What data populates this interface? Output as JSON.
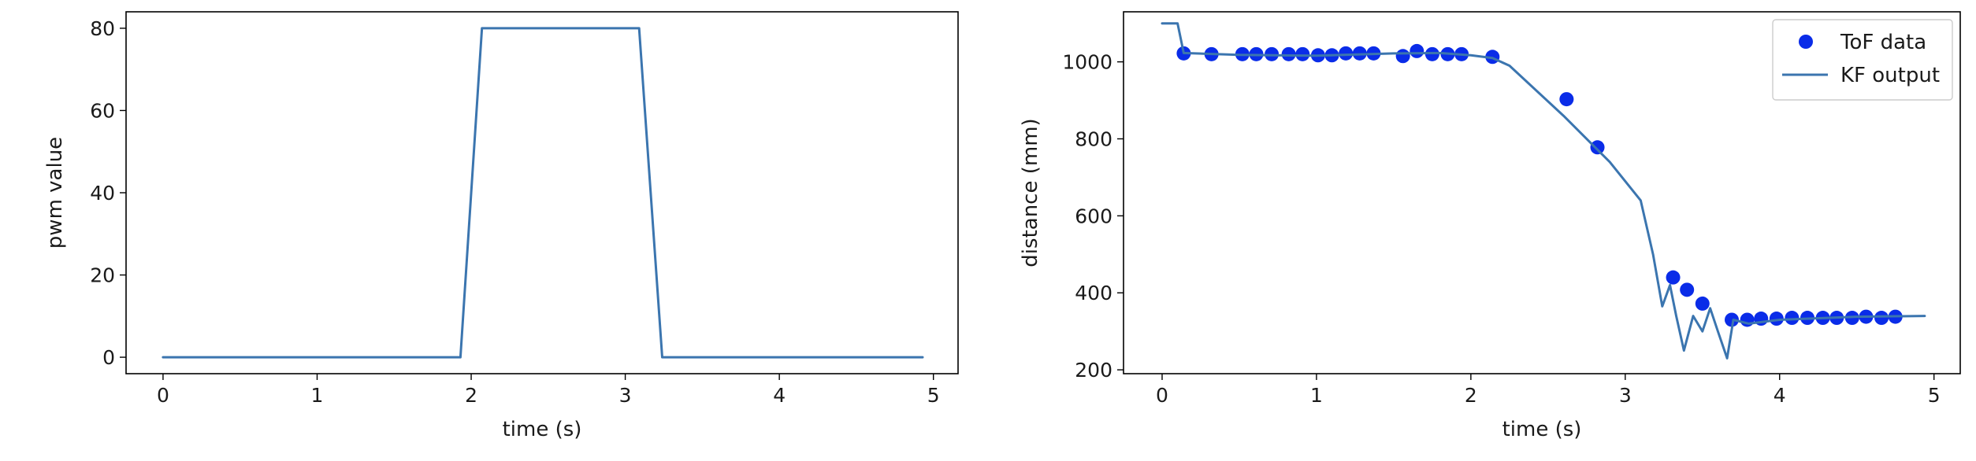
{
  "chart_data": [
    {
      "type": "line",
      "xlabel": "time (s)",
      "ylabel": "pwm value",
      "xlim": [
        -0.24,
        5.16
      ],
      "ylim": [
        -4,
        84
      ],
      "xticks": [
        0,
        1,
        2,
        3,
        4,
        5
      ],
      "yticks": [
        0,
        20,
        40,
        60,
        80
      ],
      "grid": false,
      "series": [
        {
          "kind": "line",
          "color": "#3b75af",
          "x": [
            0,
            1.93,
            2.07,
            3.09,
            3.24,
            4.93
          ],
          "y": [
            0,
            0,
            80,
            80,
            0,
            0
          ]
        }
      ]
    },
    {
      "type": "line",
      "xlabel": "time (s)",
      "ylabel": "distance (mm)",
      "xlim": [
        -0.25,
        5.17
      ],
      "ylim": [
        190,
        1130
      ],
      "xticks": [
        0,
        1,
        2,
        3,
        4,
        5
      ],
      "yticks": [
        200,
        400,
        600,
        800,
        1000
      ],
      "grid": false,
      "legend_position": "top-right",
      "series": [
        {
          "name": "ToF data",
          "kind": "scatter",
          "color": "#0a2ce8",
          "x": [
            0.14,
            0.32,
            0.52,
            0.61,
            0.71,
            0.82,
            0.91,
            1.01,
            1.1,
            1.19,
            1.28,
            1.37,
            1.56,
            1.65,
            1.75,
            1.85,
            1.94,
            2.14,
            2.62,
            2.82,
            3.31,
            3.4,
            3.5,
            3.69,
            3.79,
            3.88,
            3.98,
            4.08,
            4.18,
            4.28,
            4.37,
            4.47,
            4.56,
            4.66,
            4.75
          ],
          "y": [
            1022,
            1020,
            1020,
            1020,
            1020,
            1020,
            1020,
            1017,
            1017,
            1022,
            1022,
            1022,
            1015,
            1028,
            1020,
            1020,
            1020,
            1013,
            903,
            778,
            440,
            408,
            372,
            330,
            330,
            333,
            333,
            335,
            335,
            335,
            335,
            335,
            338,
            335,
            338
          ]
        },
        {
          "name": "KF output",
          "kind": "line",
          "color": "#3b75af",
          "x": [
            0,
            0.1,
            0.14,
            0.5,
            1.0,
            1.5,
            1.8,
            2.0,
            2.14,
            2.25,
            2.6,
            2.9,
            3.1,
            3.18,
            3.24,
            3.29,
            3.33,
            3.38,
            3.44,
            3.5,
            3.55,
            3.6,
            3.66,
            3.7,
            3.8,
            4.0,
            4.5,
            4.94
          ],
          "y": [
            1100,
            1100,
            1023,
            1018,
            1016,
            1022,
            1023,
            1017,
            1010,
            990,
            860,
            740,
            640,
            500,
            365,
            420,
            340,
            250,
            340,
            300,
            360,
            300,
            230,
            330,
            320,
            330,
            338,
            340
          ]
        }
      ]
    }
  ]
}
